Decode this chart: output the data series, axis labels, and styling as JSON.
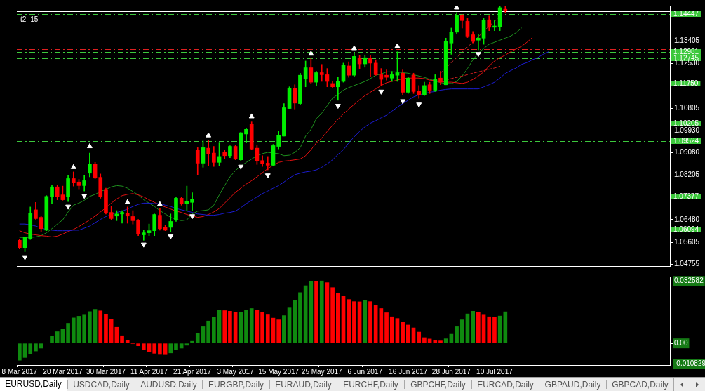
{
  "chart_data": [
    {
      "type": "candlestick",
      "categories": [
        null,
        null,
        null,
        null,
        null,
        null,
        null,
        null,
        null,
        null,
        null,
        null,
        null,
        null,
        null,
        null,
        null,
        null,
        null,
        null,
        null,
        null,
        null,
        null,
        null,
        null,
        null,
        null,
        null,
        null,
        null,
        null,
        null,
        null,
        null,
        null,
        null,
        null,
        null,
        null,
        null,
        null,
        null,
        null,
        null,
        null,
        null,
        null,
        null,
        null,
        null,
        null,
        null,
        null,
        null,
        null,
        null,
        null,
        null,
        null,
        null,
        null,
        null,
        null,
        null,
        null,
        null,
        null,
        null,
        null,
        null,
        null,
        null,
        null,
        null,
        null,
        null,
        null,
        null,
        null,
        null,
        null,
        null,
        null,
        null,
        null,
        null,
        null,
        null,
        null,
        null,
        null,
        null,
        null,
        null,
        null,
        null,
        null,
        null,
        null,
        null,
        null,
        null,
        null,
        null,
        null,
        null,
        null,
        null,
        null,
        null,
        null,
        null,
        null,
        null,
        null,
        null,
        null,
        null,
        null,
        null
      ],
      "ohlc": [
        [
          1.0568,
          1.0573,
          1.0534,
          1.0539
        ],
        [
          1.0539,
          1.0581,
          1.0524,
          1.0579
        ],
        [
          1.0573,
          1.0697,
          1.0571,
          1.0673
        ],
        [
          1.0686,
          1.0715,
          1.0649,
          1.0652
        ],
        [
          1.0657,
          1.0662,
          1.06,
          1.0613
        ],
        [
          1.0607,
          1.0741,
          1.0605,
          1.0738
        ],
        [
          1.0736,
          1.078,
          1.071,
          1.0775
        ],
        [
          1.0775,
          1.0783,
          1.0725,
          1.0738
        ],
        [
          1.0744,
          1.0778,
          1.0723,
          1.0725
        ],
        [
          1.0738,
          1.082,
          1.0718,
          1.0807
        ],
        [
          1.0807,
          1.0833,
          1.0778,
          1.0791
        ],
        [
          1.0794,
          1.0804,
          1.0767,
          1.078
        ],
        [
          1.078,
          1.082,
          1.0759,
          1.0799
        ],
        [
          1.0828,
          1.0906,
          1.0814,
          1.0864
        ],
        [
          1.0864,
          1.087,
          1.0807,
          1.0809
        ],
        [
          1.0812,
          1.0825,
          1.0731,
          1.0738
        ],
        [
          1.0765,
          1.077,
          1.067,
          1.0673
        ],
        [
          1.0676,
          1.0699,
          1.0647,
          1.0652
        ],
        [
          1.0662,
          1.0683,
          1.0644,
          1.067
        ],
        [
          1.067,
          1.0683,
          1.0634,
          1.0676
        ],
        [
          1.0673,
          1.0697,
          1.0634,
          1.0662
        ],
        [
          1.066,
          1.0683,
          1.0631,
          1.0644
        ],
        [
          1.0644,
          1.0649,
          1.0586,
          1.0592
        ],
        [
          1.0589,
          1.0607,
          1.0568,
          1.0597
        ],
        [
          1.0597,
          1.0631,
          1.0586,
          1.0605
        ],
        [
          1.0605,
          1.067,
          1.0586,
          1.0668
        ],
        [
          1.0665,
          1.0691,
          1.0607,
          1.0613
        ],
        [
          1.0618,
          1.0626,
          1.0605,
          1.0607
        ],
        [
          1.0618,
          1.067,
          1.06,
          1.0641
        ],
        [
          1.0647,
          1.0736,
          1.0641,
          1.0731
        ],
        [
          1.0731,
          1.0736,
          1.0704,
          1.071
        ],
        [
          1.071,
          1.0778,
          1.0683,
          1.072
        ],
        [
          1.0715,
          1.0752,
          1.0681,
          1.0728
        ],
        [
          1.0919,
          1.0927,
          1.0822,
          1.0867
        ],
        [
          1.0867,
          1.0953,
          1.0851,
          1.0927
        ],
        [
          1.0925,
          1.0956,
          1.0856,
          1.0904
        ],
        [
          1.0906,
          1.0932,
          1.0854,
          1.087
        ],
        [
          1.087,
          1.0948,
          1.0856,
          1.0893
        ],
        [
          1.0911,
          1.0919,
          1.0883,
          1.0896
        ],
        [
          1.0896,
          1.0935,
          1.0888,
          1.0932
        ],
        [
          1.0932,
          1.0938,
          1.088,
          1.0883
        ],
        [
          1.088,
          1.0987,
          1.0875,
          1.0985
        ],
        [
          1.098,
          1.1001,
          1.0948,
          1.0998
        ],
        [
          1.1019,
          1.1027,
          1.0919,
          1.0922
        ],
        [
          1.0925,
          1.0935,
          1.0862,
          1.0875
        ],
        [
          1.0877,
          1.0896,
          1.0854,
          1.0864
        ],
        [
          1.0867,
          1.0893,
          1.0841,
          1.0859
        ],
        [
          1.0859,
          1.094,
          1.0856,
          1.0935
        ],
        [
          1.0932,
          1.099,
          1.0922,
          1.0974
        ],
        [
          1.0972,
          1.1098,
          1.0972,
          1.1082
        ],
        [
          1.1079,
          1.1163,
          1.1079,
          1.1158
        ],
        [
          1.1158,
          1.1171,
          1.1077,
          1.11
        ],
        [
          1.1098,
          1.1216,
          1.1092,
          1.1208
        ],
        [
          1.1195,
          1.1263,
          1.1163,
          1.1237
        ],
        [
          1.1237,
          1.1273,
          1.1176,
          1.1181
        ],
        [
          1.1181,
          1.1223,
          1.1168,
          1.1218
        ],
        [
          1.1218,
          1.125,
          1.1184,
          1.121
        ],
        [
          1.121,
          1.1234,
          1.1163,
          1.1184
        ],
        [
          1.1176,
          1.1184,
          1.1158,
          1.1163
        ],
        [
          1.1163,
          1.1202,
          1.1111,
          1.1184
        ],
        [
          1.1184,
          1.1255,
          1.1181,
          1.1247
        ],
        [
          1.1244,
          1.126,
          1.12,
          1.1208
        ],
        [
          1.1208,
          1.1294,
          1.1202,
          1.1281
        ],
        [
          1.1273,
          1.1286,
          1.1234,
          1.1252
        ],
        [
          1.1252,
          1.1284,
          1.1239,
          1.1276
        ],
        [
          1.1273,
          1.1284,
          1.1202,
          1.1255
        ],
        [
          1.1255,
          1.1268,
          1.1208,
          1.121
        ],
        [
          1.121,
          1.1234,
          1.1168,
          1.1192
        ],
        [
          1.1208,
          1.1229,
          1.1189,
          1.12
        ],
        [
          1.1197,
          1.1223,
          1.1184,
          1.121
        ],
        [
          1.1208,
          1.1299,
          1.1184,
          1.1218
        ],
        [
          1.1216,
          1.1229,
          1.1132,
          1.1142
        ],
        [
          1.1142,
          1.1202,
          1.1137,
          1.1197
        ],
        [
          1.1208,
          1.1216,
          1.1137,
          1.1145
        ],
        [
          1.1147,
          1.1168,
          1.1118,
          1.1132
        ],
        [
          1.1132,
          1.1181,
          1.1129,
          1.1168
        ],
        [
          1.1171,
          1.1181,
          1.1137,
          1.115
        ],
        [
          1.115,
          1.121,
          1.1145,
          1.1192
        ],
        [
          1.1197,
          1.1223,
          1.1171,
          1.1181
        ],
        [
          1.1171,
          1.1352,
          1.1171,
          1.1339
        ],
        [
          1.1333,
          1.1391,
          1.1289,
          1.1375
        ],
        [
          1.1375,
          1.1451,
          1.1368,
          1.1441
        ],
        [
          1.1441,
          1.1444,
          1.1391,
          1.142
        ],
        [
          1.1417,
          1.1428,
          1.1354,
          1.136
        ],
        [
          1.1365,
          1.1378,
          1.1333,
          1.1339
        ],
        [
          1.1344,
          1.1368,
          1.1307,
          1.1352
        ],
        [
          1.1352,
          1.1428,
          1.1328,
          1.142
        ],
        [
          1.1423,
          1.1438,
          1.1381,
          1.1394
        ],
        [
          1.1394,
          1.142,
          1.1381,
          1.1399
        ],
        [
          1.1396,
          1.1477,
          1.1381,
          1.147
        ],
        [
          1.1464,
          1.1477,
          1.1451,
          1.1457
        ],
        null,
        null,
        null,
        null,
        null,
        null,
        null,
        null,
        null,
        null,
        null,
        null,
        null,
        null,
        null,
        null,
        null,
        null,
        null,
        null,
        null,
        null,
        null,
        null,
        null,
        null,
        null,
        null,
        null,
        null
      ],
      "colors": [
        "#ff0000",
        "#00ee00",
        "#00ee00",
        "#ff0000",
        "#ff0000",
        "#00ee00",
        "#00ee00",
        "#ff0000",
        "#ff0000",
        "#00ee00",
        "#ff0000",
        "#ff0000",
        "#00ee00",
        "#00ee00",
        "#ff0000",
        "#ff0000",
        "#ff0000",
        "#ff0000",
        "#00ee00",
        "#00ee00",
        "#ff0000",
        "#ff0000",
        "#ff0000",
        "#00ee00",
        "#00ee00",
        "#00ee00",
        "#ff0000",
        "#ff0000",
        "#00ee00",
        "#00ee00",
        "#ff0000",
        "#00ee00",
        "#00ee00",
        "#ff0000",
        "#00ee00",
        "#ff0000",
        "#ff0000",
        "#00ee00",
        "#ff0000",
        "#00ee00",
        "#ff0000",
        "#00ee00",
        "#00ee00",
        "#ff0000",
        "#ff0000",
        "#ff0000",
        "#ff0000",
        "#00ee00",
        "#00ee00",
        "#00ee00",
        "#00ee00",
        "#ff0000",
        "#00ee00",
        "#00ee00",
        "#ff0000",
        "#00ee00",
        "#ff0000",
        "#ff0000",
        "#ff0000",
        "#00ee00",
        "#00ee00",
        "#ff0000",
        "#00ee00",
        "#ff0000",
        "#00ee00",
        "#ff0000",
        "#ff0000",
        "#ff0000",
        "#ff0000",
        "#00ee00",
        "#00ee00",
        "#ff0000",
        "#00ee00",
        "#ff0000",
        "#ff0000",
        "#00ee00",
        "#ff0000",
        "#00ee00",
        "#ff0000",
        "#00ee00",
        "#00ee00",
        "#00ee00",
        "#ff0000",
        "#ff0000",
        "#ff0000",
        "#00ee00",
        "#00ee00",
        "#ff0000",
        "#00ee00",
        "#00ee00",
        "#ff0000",
        null,
        null,
        null,
        null,
        null,
        null,
        null,
        null,
        null,
        null,
        null,
        null,
        null,
        null,
        null,
        null,
        null,
        null,
        null,
        null,
        null,
        null,
        null,
        null,
        null,
        null,
        null,
        null,
        null,
        null
      ],
      "series": [
        {
          "type": "line",
          "color": "#1c1cd0",
          "values": [
            1.0631,
            1.0631,
            1.0628,
            1.0623,
            1.0615,
            1.061,
            1.0607,
            1.0605,
            1.0605,
            1.0605,
            1.0607,
            1.0607,
            1.0615,
            1.0623,
            1.0636,
            1.0649,
            1.066,
            1.0668,
            1.0676,
            1.0681,
            1.0689,
            1.0699,
            1.0707,
            1.0712,
            1.0712,
            1.071,
            1.071,
            1.0704,
            1.0699,
            1.0691,
            1.0686,
            1.0681,
            1.0676,
            1.067,
            1.0668,
            1.0665,
            1.0665,
            1.0668,
            1.0673,
            1.0676,
            1.0681,
            1.0694,
            1.071,
            1.0723,
            1.0736,
            1.0749,
            1.0759,
            1.077,
            1.078,
            1.0794,
            1.0809,
            1.0822,
            1.0828,
            1.0833,
            1.0836,
            1.0841,
            1.0851,
            1.0864,
            1.088,
            1.0901,
            1.0919,
            1.0946,
            1.0969,
            1.099,
            1.1008,
            1.1022,
            1.1032,
            1.1043,
            1.1053,
            1.1069,
            1.1084,
            1.1098,
            1.1111,
            1.1124,
            1.1132,
            1.1137,
            1.1142,
            1.1145,
            1.115,
            1.1153,
            1.1155,
            1.1155,
            1.1155,
            1.1155,
            1.1155,
            1.1155,
            1.1163,
            1.1171,
            1.1181,
            1.1197,
            1.1215,
            1.1226,
            1.1236,
            1.125,
            1.1257,
            1.1268,
            1.1276,
            1.1289,
            1.1299,
            null,
            null,
            null,
            null,
            null,
            null,
            null,
            null,
            null,
            null,
            null,
            null,
            null,
            null,
            null,
            null,
            null,
            null,
            null,
            null,
            null,
            null
          ]
        },
        {
          "type": "line",
          "color": "#e01010",
          "values": [
            1.0605,
            1.0597,
            1.0592,
            1.0589,
            1.0586,
            1.0584,
            1.0581,
            1.0584,
            1.0592,
            1.0602,
            1.061,
            1.0621,
            1.0634,
            1.0647,
            1.0662,
            1.0678,
            1.0694,
            1.0712,
            1.0728,
            1.0741,
            1.0746,
            1.0749,
            1.0744,
            1.0736,
            1.0725,
            1.0715,
            1.0704,
            1.0697,
            1.0689,
            1.0681,
            1.0676,
            1.0668,
            1.0662,
            1.0657,
            1.066,
            1.0668,
            1.0678,
            1.0691,
            1.0712,
            1.0733,
            1.0754,
            1.077,
            1.0786,
            1.0799,
            1.0814,
            1.083,
            1.0846,
            1.0859,
            1.087,
            1.0875,
            1.0877,
            1.088,
            1.0883,
            1.0896,
            1.0919,
            1.0946,
            1.0964,
            1.099,
            1.1014,
            1.1037,
            1.1058,
            1.1077,
            1.1095,
            1.1113,
            1.1129,
            1.1142,
            1.1155,
            1.1168,
            1.1179,
            1.1184,
            1.1189,
            1.1195,
            1.1197,
            1.1197,
            1.1197,
            1.1195,
            1.1189,
            1.1187,
            1.1184,
            1.1181,
            1.1181,
            1.1179,
            1.1176,
            1.1181,
            1.1192,
            1.1205,
            1.1221,
            1.1244,
            1.1263,
            1.1276,
            1.1286,
            1.1299,
            1.131,
            1.132,
            1.1336,
            1.1354,
            null,
            null,
            null,
            null,
            null,
            null,
            null,
            null,
            null,
            null,
            null,
            null,
            null,
            null,
            null,
            null,
            null,
            null,
            null,
            null,
            null,
            null,
            null,
            null,
            null
          ]
        },
        {
          "type": "line",
          "color": "#1e901e",
          "values": [
            1.0579,
            1.0579,
            1.0579,
            1.0581,
            1.0586,
            1.0597,
            1.0613,
            1.0631,
            1.0647,
            1.0678,
            1.0704,
            1.0712,
            1.0723,
            1.0738,
            1.0746,
            1.0757,
            1.0765,
            1.0775,
            1.078,
            1.0778,
            1.077,
            1.0757,
            1.0744,
            1.0725,
            1.0712,
            1.0699,
            1.0683,
            1.067,
            1.0657,
            1.0649,
            1.0644,
            1.0647,
            1.067,
            1.0681,
            1.0683,
            1.0686,
            1.0704,
            1.0744,
            1.078,
            1.0814,
            1.0838,
            1.0856,
            1.087,
            1.0883,
            1.0896,
            1.0904,
            1.0909,
            1.0906,
            1.0904,
            1.0896,
            1.0898,
            1.0909,
            1.0927,
            1.0972,
            1.0998,
            1.104,
            1.1061,
            1.109,
            1.1119,
            1.1134,
            1.115,
            1.116,
            1.1168,
            1.1176,
            1.1184,
            1.1195,
            1.1208,
            1.1213,
            1.1221,
            1.1221,
            1.1221,
            1.1218,
            1.1216,
            1.121,
            1.1205,
            1.12,
            1.1192,
            1.1187,
            1.1179,
            1.1176,
            1.1176,
            1.1184,
            1.1205,
            1.1234,
            1.1268,
            1.1294,
            1.1312,
            1.1328,
            1.1336,
            1.1344,
            1.1352,
            1.136,
            1.1373,
            1.1391,
            null,
            null,
            null,
            null,
            null,
            null,
            null,
            null,
            null,
            null,
            null,
            null,
            null,
            null,
            null,
            null,
            null,
            null,
            null,
            null,
            null,
            null,
            null,
            null,
            null,
            null,
            null
          ]
        },
        {
          "type": "line",
          "color": "#d02020",
          "line_style": "dashed",
          "values": [
            null,
            null,
            null,
            null,
            null,
            null,
            null,
            null,
            null,
            null,
            null,
            null,
            null,
            null,
            null,
            null,
            null,
            null,
            null,
            null,
            null,
            null,
            null,
            null,
            null,
            null,
            null,
            null,
            null,
            null,
            null,
            null,
            null,
            null,
            null,
            null,
            null,
            null,
            null,
            null,
            null,
            null,
            null,
            null,
            null,
            null,
            null,
            null,
            null,
            null,
            null,
            null,
            null,
            null,
            null,
            null,
            null,
            null,
            null,
            null,
            null,
            null,
            null,
            null,
            null,
            null,
            null,
            null,
            null,
            null,
            null,
            null,
            null,
            null,
            null,
            null,
            null,
            null,
            null,
            1.1189,
            1.1195,
            1.12,
            1.1205,
            1.121,
            1.1216,
            1.1221,
            1.1226,
            1.1231,
            1.1236,
            1.1242,
            null,
            null,
            null,
            null,
            null,
            null,
            null,
            null,
            null,
            null,
            null,
            null,
            null,
            null,
            null,
            null,
            null,
            null,
            null,
            null,
            null,
            null,
            null,
            null,
            null,
            null,
            null,
            null,
            null,
            null,
            null
          ]
        },
        {
          "type": "line",
          "color": "#c02828",
          "line_style": "dashed",
          "values": [
            null,
            null,
            null,
            null,
            null,
            null,
            null,
            null,
            null,
            null,
            null,
            null,
            null,
            null,
            null,
            null,
            null,
            null,
            null,
            null,
            null,
            null,
            null,
            null,
            null,
            null,
            null,
            null,
            null,
            null,
            null,
            null,
            null,
            null,
            null,
            null,
            null,
            null,
            null,
            null,
            null,
            null,
            null,
            null,
            null,
            null,
            null,
            null,
            null,
            null,
            null,
            null,
            null,
            null,
            null,
            null,
            null,
            null,
            null,
            null,
            null,
            null,
            null,
            null,
            null,
            null,
            null,
            null,
            null,
            null,
            null,
            null,
            null,
            null,
            null,
            null,
            null,
            null,
            1.1216,
            1.1236,
            1.1257,
            1.1276,
            1.1297,
            1.1318,
            1.1336,
            1.1357,
            1.1378,
            1.1399,
            1.1417,
            1.1438,
            null,
            null,
            null,
            null,
            null,
            null,
            null,
            null,
            null,
            null,
            null,
            null,
            null,
            null,
            null,
            null,
            null,
            null,
            null,
            null,
            null,
            null,
            null,
            null,
            null,
            null,
            null,
            null,
            null,
            null,
            null
          ]
        },
        {
          "type": "scatter",
          "color": "#ffffff",
          "marker": "triangle",
          "values": [
            null,
            1.0503,
            null,
            null,
            null,
            null,
            null,
            null,
            null,
            1.0699,
            1.0851,
            null,
            1.0741,
            1.0932,
            null,
            null,
            null,
            null,
            null,
            null,
            1.0715,
            null,
            null,
            1.0552,
            null,
            null,
            1.0707,
            null,
            1.0584,
            null,
            null,
            null,
            1.0662,
            null,
            null,
            1.0974,
            null,
            null,
            null,
            null,
            null,
            1.0854,
            null,
            1.1048,
            null,
            null,
            1.082,
            null,
            null,
            null,
            null,
            null,
            null,
            null,
            1.1291,
            null,
            null,
            null,
            null,
            1.109,
            null,
            null,
            1.1312,
            null,
            null,
            null,
            null,
            1.1145,
            null,
            null,
            1.132,
            1.1108,
            null,
            null,
            1.1095,
            null,
            null,
            null,
            null,
            null,
            null,
            1.147,
            null,
            null,
            null,
            1.1291,
            null,
            null,
            null,
            null,
            null,
            null,
            null,
            null,
            null,
            null,
            null,
            null,
            null,
            null,
            null,
            null,
            null,
            null,
            null,
            null,
            null,
            null,
            null,
            null,
            null,
            null,
            null,
            null,
            null,
            null,
            null,
            null,
            null,
            null,
            null
          ]
        }
      ],
      "ylim": [
        1.0468,
        1.1478
      ],
      "yticks": [
        1.13405,
        {
          "value": 1.1253,
          "label": "1.12530"
        },
        1.10805,
        {
          "value": 1.0993,
          "label": "1.09930"
        },
        {
          "value": 1.0908,
          "label": "1.09080"
        },
        1.08205,
        {
          "value": 1.0648,
          "label": "1.06480"
        },
        1.05605,
        1.04755
      ],
      "ref_lines": [
        {
          "axis": "y",
          "value": 1.1457,
          "color": "#ffffff",
          "line_style": "solid"
        },
        {
          "axis": "y",
          "value": 1.14447,
          "label": "1.14447",
          "color": "#3cc83c",
          "line_style": "dashed"
        },
        {
          "axis": "y",
          "value": 1.1309,
          "color": "#e02020",
          "line_style": "dashed"
        },
        {
          "axis": "y",
          "value": 1.12981,
          "label": "1.12981",
          "color": "#3cc83c",
          "line_style": "dashed"
        },
        {
          "axis": "y",
          "value": 1.12745,
          "label": "1.12745",
          "color": "#3cc83c",
          "line_style": "dashed"
        },
        {
          "axis": "y",
          "value": 1.1175,
          "label": "1.11750",
          "color": "#3cc83c",
          "line_style": "dashed"
        },
        {
          "axis": "y",
          "value": 1.10205,
          "label": "1.10205",
          "color": "#3cc83c",
          "line_style": "dashed"
        },
        {
          "axis": "y",
          "value": 1.09524,
          "label": "1.09524",
          "color": "#3cc83c",
          "line_style": "dashed"
        },
        {
          "axis": "y",
          "value": 1.07377,
          "label": "1.07377",
          "color": "#3cc83c",
          "line_style": "dashed"
        },
        {
          "axis": "y",
          "value": 1.06094,
          "label": "1.06094",
          "color": "#3cc83c",
          "line_style": "dashed"
        }
      ],
      "annotations": [
        "t2=15"
      ]
    },
    {
      "type": "bar",
      "categories": [
        "8 Mar 2017",
        null,
        null,
        null,
        null,
        null,
        null,
        null,
        "20 Mar 2017",
        null,
        null,
        null,
        null,
        null,
        null,
        null,
        "30 Mar 2017",
        null,
        null,
        null,
        null,
        null,
        null,
        null,
        "11 Apr 2017",
        null,
        null,
        null,
        null,
        null,
        null,
        null,
        "21 Apr 2017",
        null,
        null,
        null,
        null,
        null,
        null,
        null,
        "3 May 2017",
        null,
        null,
        null,
        null,
        null,
        null,
        null,
        "15 May 2017",
        null,
        null,
        null,
        null,
        null,
        null,
        null,
        "25 May 2017",
        null,
        null,
        null,
        null,
        null,
        null,
        null,
        "6 Jun 2017",
        null,
        null,
        null,
        null,
        null,
        null,
        null,
        "16 Jun 2017",
        null,
        null,
        null,
        null,
        null,
        null,
        null,
        "28 Jun 2017",
        null,
        null,
        null,
        null,
        null,
        null,
        null,
        "10 Jul 2017",
        null,
        null,
        null,
        null,
        null,
        null,
        null,
        null,
        null,
        null,
        null,
        null,
        null,
        null,
        null,
        null,
        null,
        null,
        null,
        null,
        null,
        null,
        null,
        null,
        null,
        null,
        null,
        null,
        null,
        null,
        null,
        null
      ],
      "values": [
        -0.0088,
        -0.0074,
        -0.0056,
        -0.004,
        -0.0025,
        0.0002,
        0.0039,
        0.0061,
        0.0075,
        0.0105,
        0.0133,
        0.0142,
        0.0148,
        0.0166,
        0.0178,
        0.017,
        0.0151,
        0.0127,
        0.0084,
        0.004,
        0.0015,
        -0.0002,
        -0.0013,
        -0.0032,
        -0.0044,
        -0.0052,
        -0.0058,
        -0.0059,
        -0.005,
        -0.0034,
        -0.0025,
        -0.001,
        0.0011,
        0.0051,
        0.0087,
        0.0117,
        0.0138,
        0.0172,
        0.0171,
        0.0168,
        0.0163,
        0.0164,
        0.0174,
        0.0182,
        0.0174,
        0.0163,
        0.0149,
        0.0132,
        0.0123,
        0.0145,
        0.0185,
        0.0226,
        0.0265,
        0.0301,
        0.0323,
        0.0322,
        0.0326,
        0.0317,
        0.0291,
        0.026,
        0.0247,
        0.0229,
        0.0218,
        0.0217,
        0.0226,
        0.0218,
        0.0201,
        0.0182,
        0.016,
        0.0139,
        0.013,
        0.011,
        0.0096,
        0.0081,
        0.0059,
        0.003,
        0.0023,
        0.0017,
        0.0013,
        0.0024,
        0.0048,
        0.0087,
        0.0123,
        0.0154,
        0.0168,
        0.0161,
        0.0148,
        0.0139,
        0.0137,
        0.0143,
        0.0165,
        null,
        null,
        null,
        null,
        null,
        null,
        null,
        null,
        null,
        null,
        null,
        null,
        null,
        null,
        null,
        null,
        null,
        null,
        null,
        null,
        null,
        null,
        null,
        null,
        null,
        null,
        null,
        null,
        null,
        null
      ],
      "colors": [
        "#0f8a0f",
        "#0f8a0f",
        "#0f8a0f",
        "#0f8a0f",
        "#0f8a0f",
        "#0f8a0f",
        "#0f8a0f",
        "#0f8a0f",
        "#0f8a0f",
        "#0f8a0f",
        "#0f8a0f",
        "#0f8a0f",
        "#0f8a0f",
        "#0f8a0f",
        "#0f8a0f",
        "#ff0000",
        "#ff0000",
        "#ff0000",
        "#ff0000",
        "#ff0000",
        "#ff0000",
        "#ff0000",
        "#ff0000",
        "#ff0000",
        "#ff0000",
        "#ff0000",
        "#ff0000",
        "#ff0000",
        "#0f8a0f",
        "#0f8a0f",
        "#0f8a0f",
        "#0f8a0f",
        "#0f8a0f",
        "#0f8a0f",
        "#0f8a0f",
        "#0f8a0f",
        "#0f8a0f",
        "#0f8a0f",
        "#ff0000",
        "#ff0000",
        "#ff0000",
        "#0f8a0f",
        "#0f8a0f",
        "#0f8a0f",
        "#ff0000",
        "#ff0000",
        "#ff0000",
        "#ff0000",
        "#ff0000",
        "#0f8a0f",
        "#0f8a0f",
        "#0f8a0f",
        "#0f8a0f",
        "#0f8a0f",
        "#0f8a0f",
        "#ff0000",
        "#0f8a0f",
        "#ff0000",
        "#ff0000",
        "#ff0000",
        "#ff0000",
        "#ff0000",
        "#ff0000",
        "#ff0000",
        "#0f8a0f",
        "#ff0000",
        "#ff0000",
        "#ff0000",
        "#ff0000",
        "#ff0000",
        "#ff0000",
        "#ff0000",
        "#ff0000",
        "#ff0000",
        "#ff0000",
        "#ff0000",
        "#ff0000",
        "#ff0000",
        "#ff0000",
        "#0f8a0f",
        "#0f8a0f",
        "#0f8a0f",
        "#0f8a0f",
        "#0f8a0f",
        "#0f8a0f",
        "#ff0000",
        "#ff0000",
        "#ff0000",
        "#ff0000",
        "#0f8a0f",
        "#0f8a0f",
        null,
        null,
        null,
        null,
        null,
        null,
        null,
        null,
        null,
        null,
        null,
        null,
        null,
        null,
        null,
        null,
        null,
        null,
        null,
        null,
        null,
        null,
        null,
        null,
        null,
        null,
        null,
        null,
        null,
        null
      ],
      "ylim": [
        -0.0113,
        0.0345
      ],
      "yticks": [
        0.032582,
        {
          "value": 0,
          "label": "0.00"
        },
        -0.010829
      ]
    },
    {
      "type": "other",
      "annotations": [
        "EURUSD,Daily",
        "USDCAD,Daily",
        "AUDUSD,Daily",
        "EURGBP,Daily",
        "EURAUD,Daily",
        "EURCHF,Daily",
        "GBPCHF,Daily",
        "EURCAD,Daily",
        "GBPAUD,Daily",
        "GBPCAD,Daily"
      ]
    }
  ]
}
